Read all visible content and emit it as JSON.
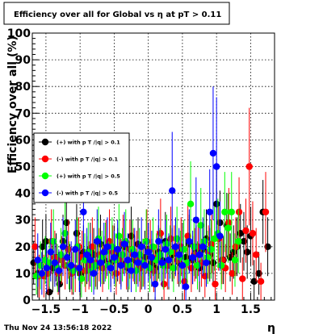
{
  "title": "Efficiency over all for Global vs   η at pT > 0.11",
  "footer": "Thu Nov 24 13:56:18 2022",
  "chart_data": {
    "type": "scatter",
    "title": "Efficiency over all for Global vs   η at pT > 0.11",
    "xlabel": "η",
    "ylabel": "Efficiency over all (%)",
    "xlim": [
      -1.7,
      1.85
    ],
    "ylim": [
      0,
      100
    ],
    "xticks": [
      -1.5,
      -1,
      -0.5,
      0,
      0.5,
      1,
      1.5
    ],
    "xtick_labels": [
      "−1.5",
      "−1",
      "−0.5",
      "0",
      "0.5",
      "1",
      "1.5"
    ],
    "yticks": [
      0,
      10,
      20,
      30,
      40,
      50,
      60,
      70,
      80,
      90,
      100
    ],
    "ytick_labels": [
      "0",
      "10",
      "20",
      "30",
      "40",
      "50",
      "60",
      "70",
      "80",
      "90",
      "100"
    ],
    "grid": true,
    "legend_position": "left-middle",
    "series": [
      {
        "name": "(+) with p T /|q| > 0.1",
        "color": "#000000",
        "x": [
          -1.68,
          -1.62,
          -1.55,
          -1.5,
          -1.45,
          -1.4,
          -1.35,
          -1.3,
          -1.25,
          -1.2,
          -1.15,
          -1.1,
          -1.05,
          -1.0,
          -0.95,
          -0.9,
          -0.85,
          -0.8,
          -0.75,
          -0.7,
          -0.65,
          -0.6,
          -0.55,
          -0.5,
          -0.45,
          -0.4,
          -0.35,
          -0.3,
          -0.25,
          -0.2,
          -0.15,
          -0.1,
          -0.05,
          0.0,
          0.05,
          0.1,
          0.15,
          0.2,
          0.25,
          0.3,
          0.35,
          0.4,
          0.45,
          0.5,
          0.55,
          0.6,
          0.65,
          0.7,
          0.75,
          0.8,
          0.85,
          0.9,
          0.95,
          1.0,
          1.05,
          1.1,
          1.15,
          1.2,
          1.25,
          1.3,
          1.35,
          1.4,
          1.45,
          1.5,
          1.55,
          1.62,
          1.68,
          1.75
        ],
        "y": [
          14,
          10,
          20,
          22,
          3,
          12,
          16,
          6,
          22,
          29,
          12,
          11,
          25,
          10,
          18,
          15,
          19,
          17,
          13,
          21,
          15,
          20,
          14,
          18,
          17,
          14,
          20,
          12,
          24,
          15,
          21,
          13,
          16,
          19,
          14,
          12,
          18,
          15,
          22,
          13,
          17,
          20,
          14,
          19,
          16,
          21,
          15,
          18,
          12,
          19,
          23,
          17,
          14,
          36,
          29,
          15,
          28,
          16,
          18,
          20,
          25,
          22,
          18,
          24,
          7,
          10,
          33,
          20
        ],
        "err": [
          8,
          9,
          10,
          10,
          7,
          9,
          9,
          7,
          10,
          12,
          9,
          9,
          11,
          8,
          10,
          9,
          10,
          10,
          9,
          11,
          9,
          10,
          9,
          10,
          10,
          9,
          10,
          9,
          11,
          9,
          10,
          9,
          10,
          10,
          9,
          9,
          10,
          9,
          11,
          9,
          10,
          10,
          9,
          10,
          9,
          11,
          9,
          10,
          9,
          10,
          11,
          10,
          9,
          13,
          12,
          9,
          12,
          9,
          10,
          11,
          11,
          11,
          10,
          11,
          8,
          8,
          12,
          11
        ]
      },
      {
        "name": "(-) with p T /|q| > 0.1",
        "color": "#ff0000",
        "x": [
          -1.66,
          -1.6,
          -1.53,
          -1.47,
          -1.42,
          -1.37,
          -1.32,
          -1.27,
          -1.22,
          -1.17,
          -1.12,
          -1.07,
          -1.02,
          -0.97,
          -0.92,
          -0.87,
          -0.82,
          -0.77,
          -0.72,
          -0.67,
          -0.62,
          -0.57,
          -0.52,
          -0.47,
          -0.42,
          -0.37,
          -0.32,
          -0.27,
          -0.22,
          -0.17,
          -0.12,
          -0.07,
          -0.02,
          0.03,
          0.08,
          0.13,
          0.18,
          0.23,
          0.28,
          0.33,
          0.38,
          0.43,
          0.48,
          0.53,
          0.58,
          0.63,
          0.68,
          0.73,
          0.78,
          0.83,
          0.88,
          0.93,
          0.98,
          1.03,
          1.08,
          1.13,
          1.18,
          1.23,
          1.28,
          1.33,
          1.38,
          1.43,
          1.48,
          1.53,
          1.58,
          1.65,
          1.72
        ],
        "y": [
          20,
          9,
          9,
          10,
          22,
          16,
          10,
          15,
          13,
          19,
          10,
          12,
          20,
          16,
          11,
          13,
          20,
          14,
          17,
          12,
          19,
          22,
          18,
          10,
          15,
          21,
          13,
          19,
          17,
          16,
          12,
          14,
          22,
          19,
          11,
          16,
          25,
          6,
          13,
          23,
          18,
          15,
          20,
          7,
          24,
          12,
          17,
          20,
          14,
          9,
          18,
          21,
          6,
          23,
          15,
          12,
          29,
          10,
          20,
          33,
          8,
          26,
          50,
          25,
          17,
          7,
          33
        ],
        "err": [
          11,
          8,
          8,
          8,
          12,
          10,
          8,
          9,
          9,
          11,
          8,
          9,
          11,
          10,
          8,
          9,
          11,
          9,
          10,
          9,
          11,
          12,
          10,
          8,
          9,
          11,
          9,
          11,
          10,
          10,
          9,
          9,
          12,
          11,
          8,
          10,
          13,
          7,
          9,
          12,
          10,
          9,
          11,
          7,
          12,
          9,
          10,
          11,
          9,
          8,
          10,
          11,
          7,
          12,
          9,
          9,
          13,
          8,
          11,
          13,
          8,
          12,
          22,
          12,
          10,
          7,
          15
        ]
      },
      {
        "name": "(+) with p T /|q| > 0.5",
        "color": "#00ff00",
        "x": [
          -1.64,
          -1.58,
          -1.51,
          -1.45,
          -1.39,
          -1.33,
          -1.28,
          -1.22,
          -1.16,
          -1.1,
          -1.04,
          -0.98,
          -0.93,
          -0.88,
          -0.83,
          -0.78,
          -0.73,
          -0.68,
          -0.63,
          -0.58,
          -0.53,
          -0.48,
          -0.43,
          -0.38,
          -0.33,
          -0.28,
          -0.23,
          -0.18,
          -0.13,
          -0.08,
          -0.03,
          0.02,
          0.07,
          0.12,
          0.17,
          0.22,
          0.27,
          0.32,
          0.37,
          0.42,
          0.47,
          0.52,
          0.57,
          0.62,
          0.67,
          0.72,
          0.77,
          0.82,
          0.87,
          0.92,
          0.97,
          1.02,
          1.07,
          1.12,
          1.17,
          1.22,
          1.27,
          1.32
        ],
        "y": [
          9,
          13,
          15,
          14,
          22,
          12,
          17,
          25,
          13,
          11,
          20,
          8,
          15,
          18,
          11,
          13,
          23,
          16,
          18,
          13,
          20,
          15,
          24,
          17,
          22,
          13,
          19,
          11,
          17,
          14,
          22,
          12,
          20,
          15,
          17,
          13,
          21,
          18,
          12,
          23,
          16,
          19,
          14,
          36,
          20,
          13,
          28,
          22,
          16,
          19,
          23,
          25,
          13,
          33,
          27,
          33,
          15,
          22
        ],
        "err": [
          7,
          9,
          9,
          9,
          12,
          9,
          10,
          13,
          9,
          8,
          11,
          7,
          10,
          11,
          8,
          9,
          12,
          10,
          11,
          9,
          11,
          10,
          12,
          10,
          12,
          9,
          11,
          8,
          10,
          9,
          12,
          9,
          11,
          10,
          10,
          9,
          11,
          10,
          9,
          12,
          10,
          11,
          9,
          16,
          11,
          9,
          14,
          12,
          10,
          11,
          12,
          13,
          9,
          15,
          13,
          15,
          10,
          12
        ]
      },
      {
        "name": "(-) with p T /|q| > 0.5",
        "color": "#0000ff",
        "x": [
          -1.62,
          -1.56,
          -1.49,
          -1.43,
          -1.37,
          -1.31,
          -1.25,
          -1.19,
          -1.13,
          -1.07,
          -1.01,
          -0.95,
          -0.9,
          -0.85,
          -0.8,
          -0.75,
          -0.7,
          -0.65,
          -0.6,
          -0.55,
          -0.5,
          -0.45,
          -0.4,
          -0.35,
          -0.3,
          -0.25,
          -0.2,
          -0.15,
          -0.1,
          -0.05,
          0.0,
          0.05,
          0.1,
          0.15,
          0.2,
          0.25,
          0.3,
          0.35,
          0.4,
          0.45,
          0.5,
          0.55,
          0.6,
          0.65,
          0.7,
          0.75,
          0.8,
          0.85,
          0.9,
          0.95,
          1.0,
          1.05
        ],
        "y": [
          15,
          10,
          12,
          18,
          14,
          11,
          20,
          16,
          13,
          19,
          12,
          33,
          17,
          15,
          10,
          22,
          14,
          18,
          20,
          12,
          16,
          19,
          13,
          21,
          15,
          11,
          17,
          14,
          20,
          13,
          18,
          16,
          6,
          22,
          14,
          19,
          15,
          41,
          20,
          17,
          13,
          5,
          22,
          16,
          30,
          17,
          20,
          14,
          33,
          55,
          50,
          24
        ],
        "err": [
          10,
          8,
          9,
          11,
          9,
          8,
          11,
          10,
          9,
          11,
          9,
          18,
          10,
          10,
          8,
          12,
          9,
          11,
          11,
          9,
          10,
          11,
          9,
          12,
          10,
          8,
          10,
          9,
          11,
          9,
          11,
          10,
          6,
          12,
          9,
          11,
          10,
          22,
          11,
          10,
          9,
          6,
          12,
          10,
          16,
          10,
          11,
          9,
          16,
          25,
          26,
          13
        ]
      }
    ]
  }
}
